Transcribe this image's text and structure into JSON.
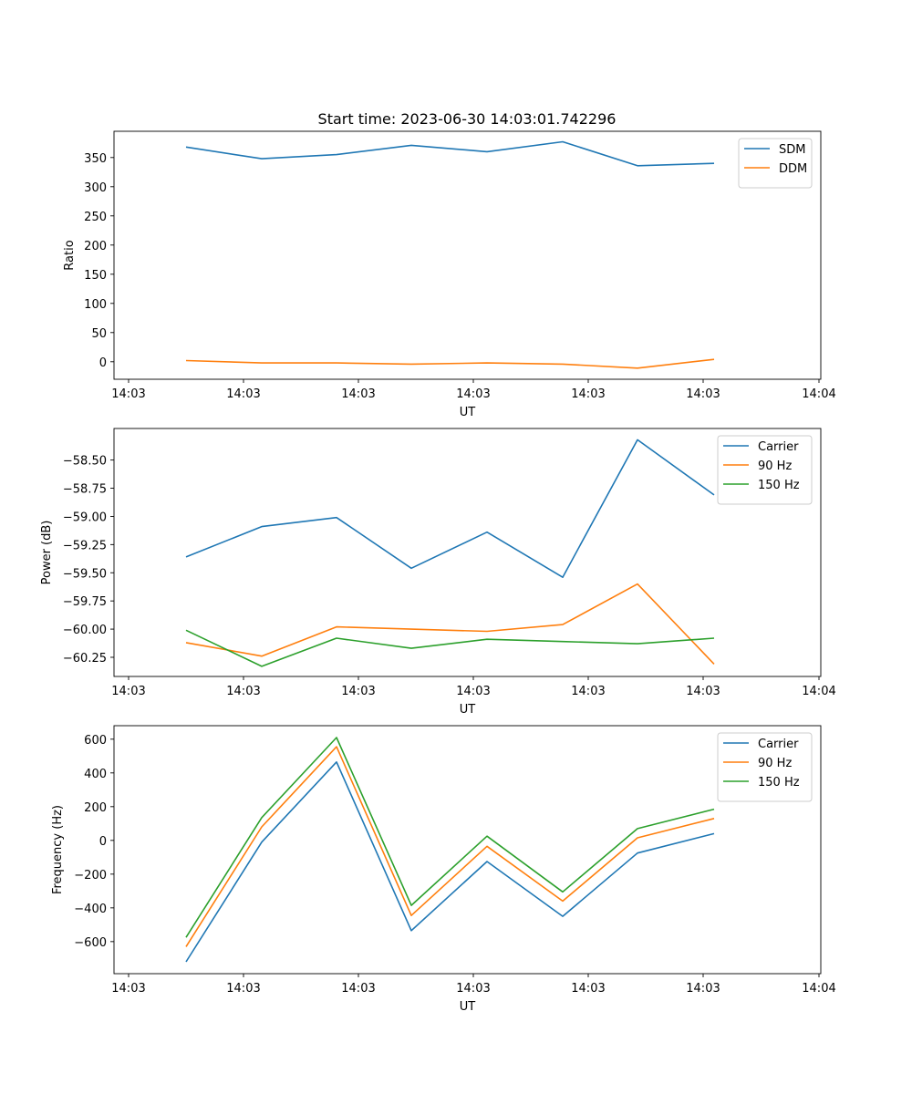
{
  "figure_title": "Start time: 2023-06-30 14:03:01.742296",
  "chart_data": [
    {
      "type": "line",
      "title": "Start time: 2023-06-30 14:03:01.742296",
      "xlabel": "UT",
      "ylabel": "Ratio",
      "x_tick_labels": [
        "14:03",
        "14:03",
        "14:03",
        "14:03",
        "14:03",
        "14:03",
        "14:04"
      ],
      "y_ticks": [
        0,
        50,
        100,
        150,
        200,
        250,
        300,
        350
      ],
      "y_tick_labels": [
        "0",
        "50",
        "100",
        "150",
        "200",
        "250",
        "300",
        "350"
      ],
      "ylim": [
        -30,
        395
      ],
      "legend_position": "top-right",
      "series": [
        {
          "name": "SDM",
          "color": "#1f77b4",
          "values": [
            368,
            348,
            355,
            371,
            360,
            377,
            336,
            340
          ]
        },
        {
          "name": "DDM",
          "color": "#ff7f0e",
          "values": [
            2,
            -2,
            -2,
            -4,
            -2,
            -4,
            -11,
            4
          ]
        }
      ]
    },
    {
      "type": "line",
      "xlabel": "UT",
      "ylabel": "Power (dB)",
      "x_tick_labels": [
        "14:03",
        "14:03",
        "14:03",
        "14:03",
        "14:03",
        "14:03",
        "14:04"
      ],
      "y_ticks": [
        -60.25,
        -60.0,
        -59.75,
        -59.5,
        -59.25,
        -59.0,
        -58.75,
        -58.5
      ],
      "y_tick_labels": [
        "−60.25",
        "−60.00",
        "−59.75",
        "−59.50",
        "−59.25",
        "−59.00",
        "−58.75",
        "−58.50"
      ],
      "ylim": [
        -60.42,
        -58.22
      ],
      "legend_position": "top-right",
      "series": [
        {
          "name": "Carrier",
          "color": "#1f77b4",
          "values": [
            -59.36,
            -59.09,
            -59.01,
            -59.46,
            -59.14,
            -59.54,
            -58.32,
            -58.81
          ]
        },
        {
          "name": "90 Hz",
          "color": "#ff7f0e",
          "values": [
            -60.12,
            -60.24,
            -59.98,
            -60.0,
            -60.02,
            -59.96,
            -59.6,
            -60.31
          ]
        },
        {
          "name": "150 Hz",
          "color": "#2ca02c",
          "values": [
            -60.01,
            -60.33,
            -60.08,
            -60.17,
            -60.09,
            -60.11,
            -60.13,
            -60.08
          ]
        }
      ]
    },
    {
      "type": "line",
      "xlabel": "UT",
      "ylabel": "Frequency (Hz)",
      "x_tick_labels": [
        "14:03",
        "14:03",
        "14:03",
        "14:03",
        "14:03",
        "14:03",
        "14:04"
      ],
      "y_ticks": [
        -600,
        -400,
        -200,
        0,
        200,
        400,
        600
      ],
      "y_tick_labels": [
        "−600",
        "−400",
        "−200",
        "0",
        "200",
        "400",
        "600"
      ],
      "ylim": [
        -790,
        680
      ],
      "legend_position": "top-right",
      "series": [
        {
          "name": "Carrier",
          "color": "#1f77b4",
          "values": [
            -720,
            -10,
            465,
            -535,
            -125,
            -450,
            -75,
            40
          ]
        },
        {
          "name": "90 Hz",
          "color": "#ff7f0e",
          "values": [
            -630,
            80,
            555,
            -445,
            -35,
            -360,
            15,
            130
          ]
        },
        {
          "name": "150 Hz",
          "color": "#2ca02c",
          "values": [
            -575,
            135,
            610,
            -385,
            25,
            -305,
            70,
            185
          ]
        }
      ]
    }
  ]
}
